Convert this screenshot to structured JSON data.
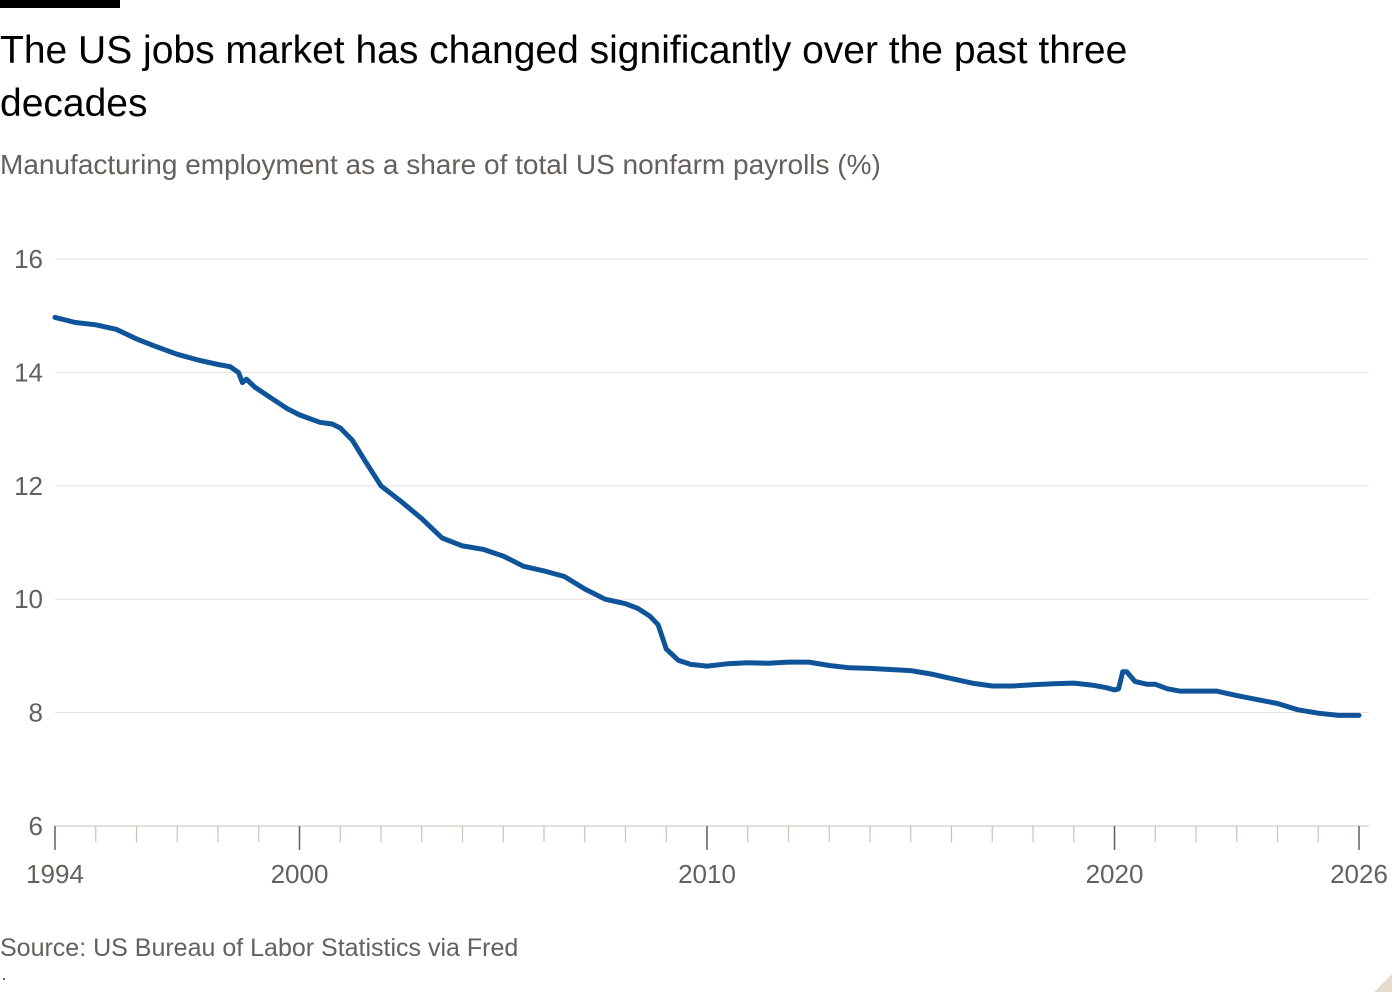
{
  "header": {
    "title": "The US jobs market has changed significantly over the past three decades",
    "subtitle": "Manufacturing employment as a share of total US nonfarm payrolls (%)"
  },
  "footer": {
    "source": "Source: US Bureau of Labor Statistics via Fred"
  },
  "colors": {
    "line": "#0f5499",
    "grid": "#e6e1dc",
    "text_muted": "#66605c"
  },
  "chart_data": {
    "type": "line",
    "title": "The US jobs market has changed significantly over the past three decades",
    "subtitle": "Manufacturing employment as a share of total US nonfarm payrolls (%)",
    "xlabel": "",
    "ylabel": "",
    "xlim": [
      1994,
      2026
    ],
    "ylim": [
      6,
      16
    ],
    "x_ticks": [
      1994,
      2000,
      2010,
      2020,
      2026
    ],
    "y_ticks": [
      6,
      8,
      10,
      12,
      14,
      16
    ],
    "grid": true,
    "legend": "none",
    "series": [
      {
        "x": [
          1994.0,
          1994.5,
          1995.0,
          1995.5,
          1996.0,
          1996.5,
          1997.0,
          1997.5,
          1998.0,
          1998.3,
          1998.5,
          1998.6,
          1998.7,
          1998.9,
          1999.3,
          1999.7,
          2000.0,
          2000.5,
          2000.8,
          2001.0,
          2001.3,
          2001.6,
          2002.0,
          2002.5,
          2003.0,
          2003.5,
          2004.0,
          2004.5,
          2005.0,
          2005.5,
          2006.0,
          2006.5,
          2007.0,
          2007.5,
          2008.0,
          2008.3,
          2008.6,
          2008.8,
          2009.0,
          2009.3,
          2009.6,
          2010.0,
          2010.5,
          2011.0,
          2011.5,
          2012.0,
          2012.5,
          2013.0,
          2013.5,
          2014.0,
          2014.5,
          2015.0,
          2015.5,
          2016.0,
          2016.5,
          2017.0,
          2017.5,
          2018.0,
          2018.5,
          2019.0,
          2019.5,
          2019.8,
          2020.0,
          2020.1,
          2020.2,
          2020.3,
          2020.5,
          2020.8,
          2021.0,
          2021.3,
          2021.6,
          2022.0,
          2022.5,
          2023.0,
          2023.5,
          2024.0,
          2024.5,
          2025.0,
          2025.5,
          2026.0
        ],
        "values": [
          14.97,
          14.88,
          14.84,
          14.76,
          14.59,
          14.45,
          14.32,
          14.22,
          14.14,
          14.1,
          14.0,
          13.82,
          13.88,
          13.74,
          13.55,
          13.36,
          13.25,
          13.12,
          13.09,
          13.02,
          12.8,
          12.45,
          12.0,
          11.72,
          11.42,
          11.08,
          10.94,
          10.88,
          10.76,
          10.58,
          10.5,
          10.4,
          10.18,
          10.0,
          9.92,
          9.84,
          9.7,
          9.55,
          9.12,
          8.92,
          8.85,
          8.82,
          8.86,
          8.88,
          8.87,
          8.89,
          8.89,
          8.83,
          8.79,
          8.78,
          8.76,
          8.74,
          8.68,
          8.6,
          8.52,
          8.47,
          8.47,
          8.49,
          8.51,
          8.52,
          8.48,
          8.44,
          8.4,
          8.42,
          8.72,
          8.72,
          8.55,
          8.5,
          8.5,
          8.42,
          8.38,
          8.38,
          8.38,
          8.3,
          8.23,
          8.16,
          8.05,
          7.99,
          7.95,
          7.95
        ]
      }
    ]
  }
}
